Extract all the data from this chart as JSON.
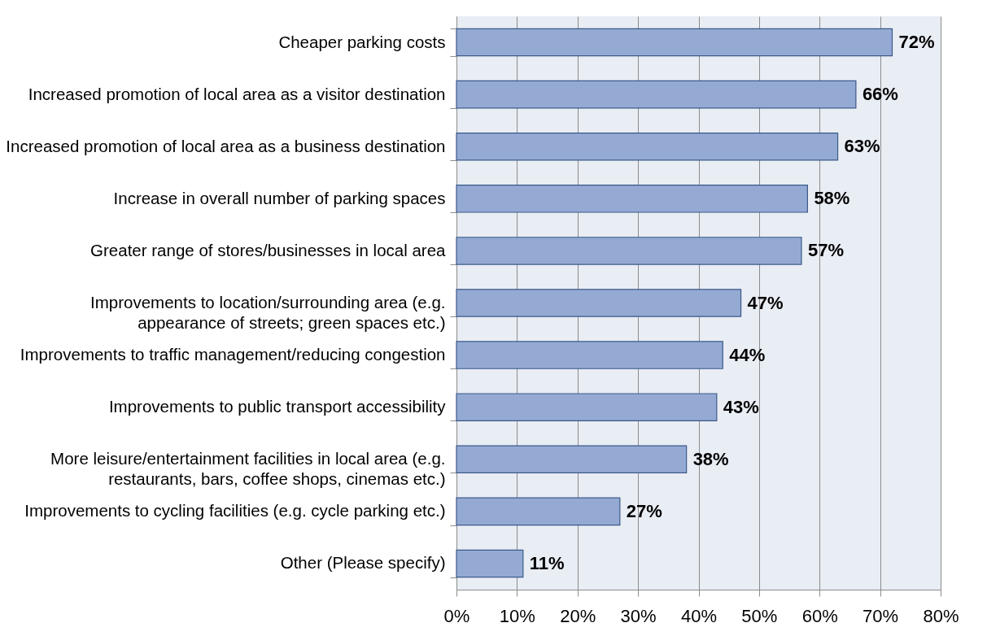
{
  "chart_data": {
    "type": "bar",
    "orientation": "horizontal",
    "categories": [
      "Cheaper parking costs",
      "Increased promotion of local area as a visitor destination",
      "Increased promotion of local area as a business destination",
      "Increase in overall number of parking spaces",
      "Greater range of stores/businesses in local area",
      "Improvements to location/surrounding area (e.g.\nappearance of streets; green spaces etc.)",
      "Improvements to traffic management/reducing congestion",
      "Improvements to public transport accessibility",
      "More leisure/entertainment facilities in local area (e.g.\nrestaurants, bars, coffee shops, cinemas etc.)",
      "Improvements to cycling facilities (e.g. cycle parking etc.)",
      "Other (Please specify)"
    ],
    "values": [
      72,
      66,
      63,
      58,
      57,
      47,
      44,
      43,
      38,
      27,
      11
    ],
    "color": "#95aad3",
    "xlim": [
      0,
      80
    ],
    "xticks": [
      {
        "value": 0,
        "label": "0%"
      },
      {
        "value": 10,
        "label": "10%"
      },
      {
        "value": 20,
        "label": "20%"
      },
      {
        "value": 30,
        "label": "30%"
      },
      {
        "value": 40,
        "label": "40%"
      },
      {
        "value": 50,
        "label": "50%"
      },
      {
        "value": 60,
        "label": "60%"
      },
      {
        "value": 70,
        "label": "70%"
      },
      {
        "value": 80,
        "label": "80%"
      }
    ],
    "value_labels": [
      "72%",
      "66%",
      "63%",
      "58%",
      "57%",
      "47%",
      "44%",
      "43%",
      "38%",
      "27%",
      "11%"
    ],
    "grid": "x"
  }
}
